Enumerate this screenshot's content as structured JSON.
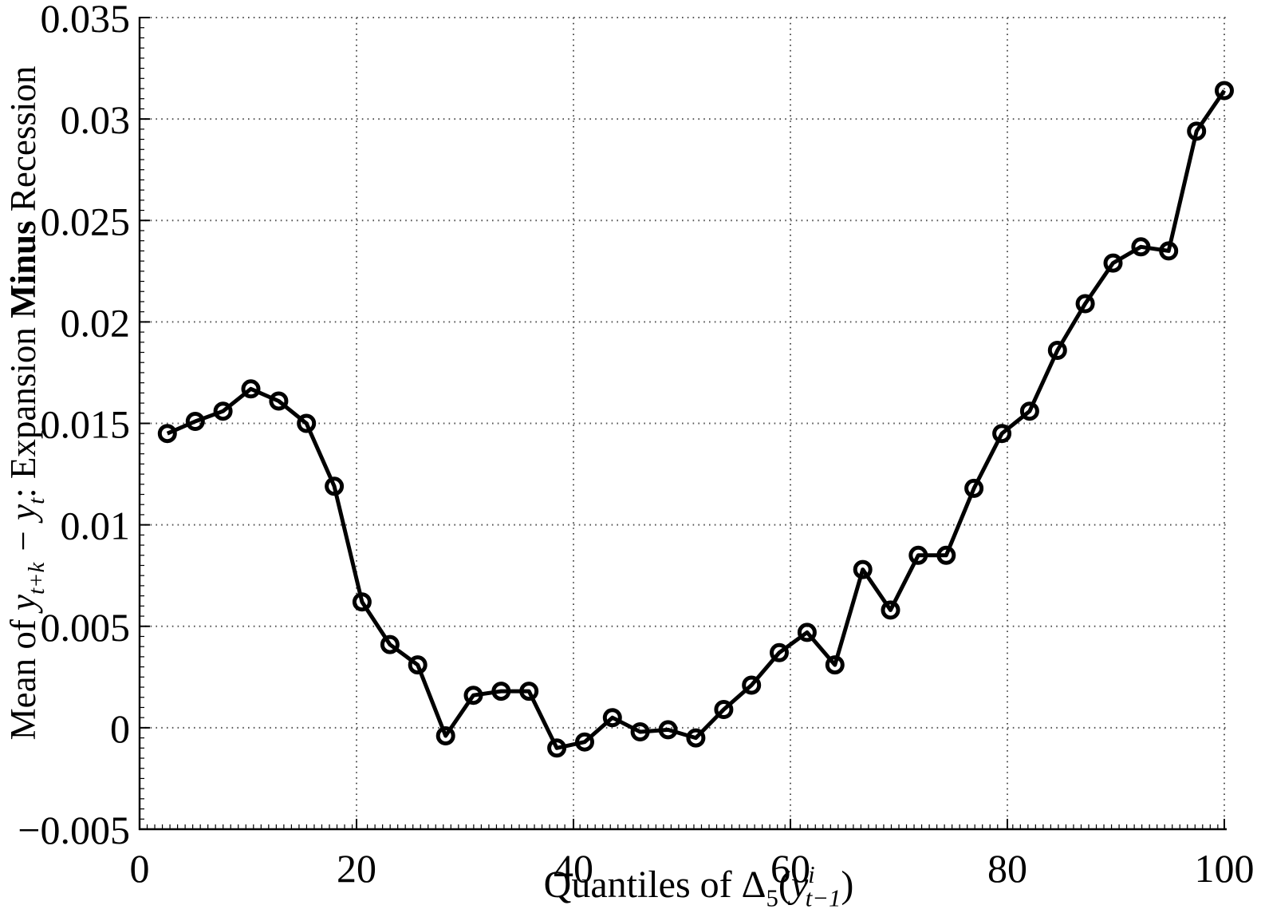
{
  "chart_data": {
    "type": "line",
    "title": "",
    "xlabel_plain": "Quantiles of Δ5(y i t−1)",
    "ylabel_plain": "Mean of y t+k − y t: Expansion Minus Recession",
    "xlabel_rich": [
      {
        "t": "Quantiles of "
      },
      {
        "t": "Δ"
      },
      {
        "t": "5",
        "v": "sub"
      },
      {
        "t": "("
      },
      {
        "t": "y",
        "i": true
      },
      {
        "t": "i",
        "v": "sup",
        "i": true
      },
      {
        "t": "t−1",
        "v": "sub",
        "i": true,
        "dx": -12
      },
      {
        "t": ")"
      }
    ],
    "ylabel_rich": [
      {
        "t": "Mean of "
      },
      {
        "t": "y",
        "i": true
      },
      {
        "t": "t+k",
        "v": "sub",
        "i": true
      },
      {
        "t": " − ",
        "i": true
      },
      {
        "t": "y",
        "i": true
      },
      {
        "t": "t",
        "v": "sub",
        "i": true
      },
      {
        "t": ": Expansion "
      },
      {
        "t": "Minus",
        "b": true
      },
      {
        "t": " Recession"
      }
    ],
    "xlim": [
      0,
      100
    ],
    "ylim": [
      -0.005,
      0.035
    ],
    "xticks": [
      0,
      20,
      40,
      60,
      80,
      100
    ],
    "xtick_labels": [
      "0",
      "20",
      "40",
      "60",
      "80",
      "100"
    ],
    "yticks": [
      -0.005,
      0,
      0.005,
      0.01,
      0.015,
      0.02,
      0.025,
      0.03,
      0.035
    ],
    "ytick_labels": [
      "−0.005",
      "0",
      "0.005",
      "0.01",
      "0.015",
      "0.02",
      "0.025",
      "0.03",
      "0.035"
    ],
    "grid": true,
    "grid_style": "dotted",
    "legend": null,
    "line_color": "#000000",
    "grid_color": "#555555",
    "axis_color": "#000000",
    "background": "#ffffff",
    "marker": "open-circle",
    "series": [
      {
        "name": "expansion-minus-recession-mean",
        "x": [
          2.56,
          5.13,
          7.69,
          10.26,
          12.82,
          15.38,
          17.95,
          20.51,
          23.08,
          25.64,
          28.21,
          30.77,
          33.33,
          35.9,
          38.46,
          41.03,
          43.59,
          46.15,
          48.72,
          51.28,
          53.85,
          56.41,
          58.97,
          61.54,
          64.1,
          66.67,
          69.23,
          71.79,
          74.36,
          76.92,
          79.49,
          82.05,
          84.62,
          87.18,
          89.74,
          92.31,
          94.87,
          97.44,
          100.0
        ],
        "y": [
          0.0145,
          0.0151,
          0.0156,
          0.0167,
          0.0161,
          0.015,
          0.0119,
          0.0062,
          0.0041,
          0.0031,
          -0.0004,
          0.0016,
          0.0018,
          0.0018,
          -0.001,
          -0.0007,
          0.0005,
          -0.0002,
          -0.0001,
          -0.0005,
          0.0009,
          0.0021,
          0.0037,
          0.0047,
          0.0031,
          0.0078,
          0.0058,
          0.0085,
          0.0085,
          0.0118,
          0.0145,
          0.0156,
          0.0186,
          0.0209,
          0.0229,
          0.0237,
          0.0235,
          0.0294,
          0.0314
        ]
      }
    ]
  }
}
